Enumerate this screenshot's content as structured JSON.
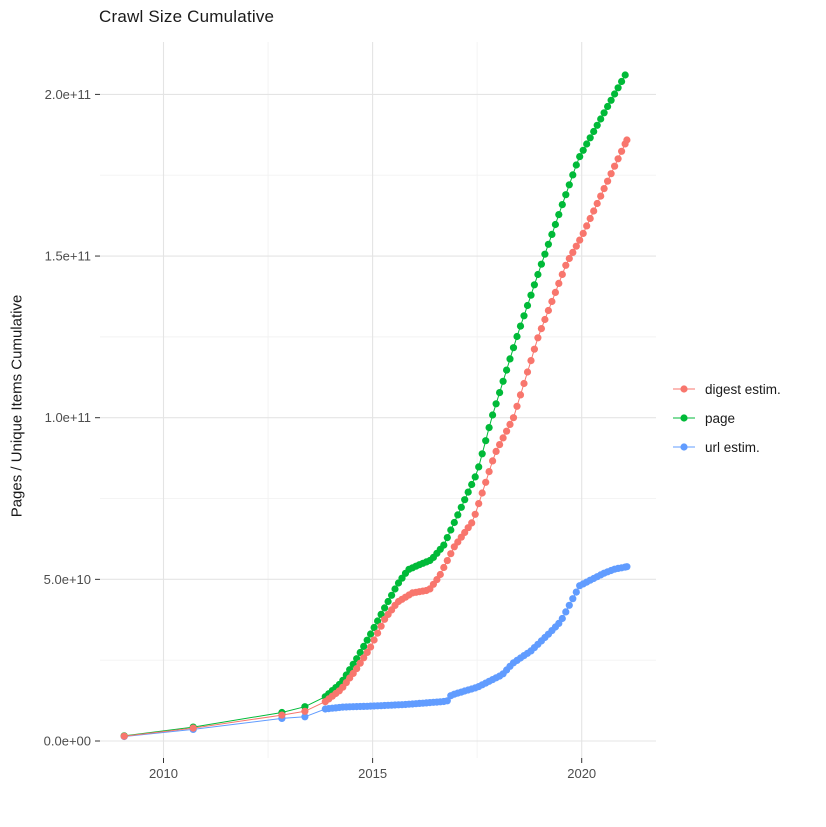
{
  "title": "Crawl Size Cumulative",
  "y_axis_title": "Pages / Unique Items Cumulative",
  "chart_data": {
    "type": "scatter",
    "title": "Crawl Size Cumulative",
    "xlabel": "",
    "ylabel": "Pages / Unique Items Cumulative",
    "grid": true,
    "legend_position": "right",
    "x_axis": {
      "tick_values": [
        2010,
        2015,
        2020
      ],
      "tick_labels": [
        "2010",
        "2015",
        "2020"
      ],
      "minor_values": [
        2012.5,
        2017.5
      ],
      "range": [
        2008.58,
        2021.8
      ]
    },
    "y_axis": {
      "tick_values": [
        0,
        50000000000.0,
        100000000000.0,
        150000000000.0,
        200000000000.0
      ],
      "tick_labels": [
        "0.0e+00",
        "5.0e+10",
        "1.0e+11",
        "1.5e+11",
        "2.0e+11"
      ],
      "minor_values": [
        25000000000.0,
        75000000000.0,
        125000000000.0,
        175000000000.0
      ],
      "range": [
        -5300000000.0,
        216500000000.0
      ]
    },
    "point_years_sparse": [
      2009.06,
      2010.71,
      2012.83,
      2013.38
    ],
    "monthly_points_from": 2013.87,
    "series": [
      {
        "name": "digest estim.",
        "color": "#F8766D",
        "end_year": 2021.08,
        "anchors": [
          [
            2009.06,
            1500000000.0
          ],
          [
            2010.71,
            4000000000.0
          ],
          [
            2012.83,
            8000000000.0
          ],
          [
            2013.38,
            9200000000.0
          ],
          [
            2013.87,
            12200000000.0
          ],
          [
            2014.25,
            16000000000.0
          ],
          [
            2014.6,
            22000000000.0
          ],
          [
            2014.95,
            29000000000.0
          ],
          [
            2015.3,
            38000000000.0
          ],
          [
            2015.6,
            43000000000.0
          ],
          [
            2015.95,
            45800000000.0
          ],
          [
            2016.35,
            46700000000.0
          ],
          [
            2016.6,
            51000000000.0
          ],
          [
            2016.95,
            60000000000.0
          ],
          [
            2017.4,
            68000000000.0
          ],
          [
            2017.93,
            89000000000.0
          ],
          [
            2018.37,
            100000000000.0
          ],
          [
            2018.96,
            125000000000.0
          ],
          [
            2019.64,
            147800000000.0
          ],
          [
            2020.0,
            156000000000.0
          ],
          [
            2021.08,
            185900000000.0
          ]
        ]
      },
      {
        "name": "page",
        "color": "#00BA38",
        "end_year": 2021.04,
        "anchors": [
          [
            2009.06,
            1600000000.0
          ],
          [
            2010.71,
            4300000000.0
          ],
          [
            2012.83,
            8800000000.0
          ],
          [
            2013.38,
            10600000000.0
          ],
          [
            2013.87,
            13700000000.0
          ],
          [
            2014.25,
            18000000000.0
          ],
          [
            2014.6,
            25000000000.0
          ],
          [
            2014.95,
            33000000000.0
          ],
          [
            2015.3,
            41500000000.0
          ],
          [
            2015.6,
            48500000000.0
          ],
          [
            2015.85,
            53000000000.0
          ],
          [
            2016.15,
            54700000000.0
          ],
          [
            2016.4,
            56000000000.0
          ],
          [
            2016.7,
            60500000000.0
          ],
          [
            2016.95,
            67500000000.0
          ],
          [
            2017.5,
            83000000000.0
          ],
          [
            2017.85,
            100000000000.0
          ],
          [
            2018.45,
            125000000000.0
          ],
          [
            2019.05,
            148000000000.0
          ],
          [
            2019.92,
            180000000000.0
          ],
          [
            2021.04,
            206000000000.0
          ]
        ]
      },
      {
        "name": "url estim.",
        "color": "#619CFF",
        "end_year": 2021.08,
        "anchors": [
          [
            2009.06,
            1400000000.0
          ],
          [
            2010.71,
            3600000000.0
          ],
          [
            2012.83,
            7000000000.0
          ],
          [
            2013.38,
            7500000000.0
          ],
          [
            2013.87,
            9900000000.0
          ],
          [
            2014.3,
            10500000000.0
          ],
          [
            2015.0,
            10800000000.0
          ],
          [
            2015.8,
            11300000000.0
          ],
          [
            2016.4,
            11900000000.0
          ],
          [
            2016.78,
            12300000000.0
          ],
          [
            2016.88,
            14200000000.0
          ],
          [
            2017.5,
            16600000000.0
          ],
          [
            2018.1,
            20500000000.0
          ],
          [
            2018.35,
            24000000000.0
          ],
          [
            2018.8,
            28000000000.0
          ],
          [
            2019.2,
            33000000000.0
          ],
          [
            2019.5,
            37000000000.0
          ],
          [
            2019.95,
            48000000000.0
          ],
          [
            2020.2,
            49700000000.0
          ],
          [
            2020.55,
            52000000000.0
          ],
          [
            2020.8,
            53200000000.0
          ],
          [
            2021.08,
            53900000000.0
          ]
        ]
      }
    ]
  },
  "colors": {
    "background": "#ffffff",
    "grid_major": "#e4e4e4",
    "grid_minor": "#f2f2f2",
    "tick_mark": "#333333",
    "tick_label": "#4d4d4d",
    "text": "#1a1a1a"
  }
}
